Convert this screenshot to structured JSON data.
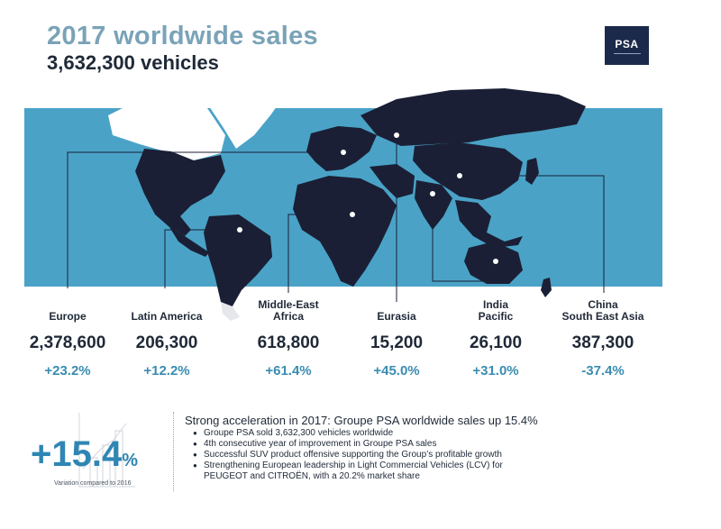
{
  "header": {
    "title": "2017 worldwide sales",
    "subtitle": "3,632,300 vehicles",
    "logo_text": "PSA"
  },
  "regions": [
    {
      "name": "Europe",
      "sales": "2,378,600",
      "variation": "+23.2%"
    },
    {
      "name": "Latin America",
      "sales": "206,300",
      "variation": "+12.2%"
    },
    {
      "name": "Middle-East\nAfrica",
      "sales": "618,800",
      "variation": "+61.4%"
    },
    {
      "name": "Eurasia",
      "sales": "15,200",
      "variation": "+45.0%"
    },
    {
      "name": "India\nPacific",
      "sales": "26,100",
      "variation": "+31.0%"
    },
    {
      "name": "China\nSouth East Asia",
      "sales": "387,300",
      "variation": "-37.4%"
    }
  ],
  "summary": {
    "big_value": "+15.4",
    "big_unit": "%",
    "caption": "Variation compared to 2016",
    "headline": "Strong acceleration in 2017: Groupe PSA worldwide sales up 15.4%",
    "bullets": [
      "Groupe PSA sold 3,632,300 vehicles worldwide",
      "4th consecutive year of improvement in Groupe PSA sales",
      "Successful SUV product offensive supporting the Group’s profitable growth",
      "Strengthening European leadership in Light Commercial Vehicles (LCV) for",
      "PEUGEOT and CITROËN, with a 20.2% market share"
    ]
  },
  "colors": {
    "title": "#7aa3b8",
    "ocean": "#4aa3c7",
    "land_dark": "#1b1f35",
    "land_light": "#ffffff",
    "accent": "#2f86b3",
    "logo_bg": "#1b2a4a"
  }
}
